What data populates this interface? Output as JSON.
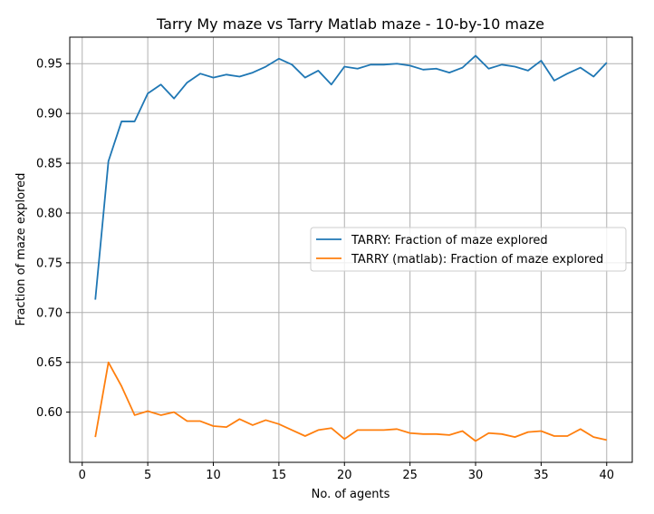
{
  "chart_data": {
    "type": "line",
    "title": "Tarry My maze vs Tarry Matlab maze - 10-by-10 maze",
    "xlabel": "No. of agents",
    "ylabel": "Fraction of maze explored",
    "xlim": [
      -0.95,
      41.95
    ],
    "ylim": [
      0.5496,
      0.9766
    ],
    "xticks": [
      0,
      5,
      10,
      15,
      20,
      25,
      30,
      35,
      40
    ],
    "yticks": [
      0.6,
      0.65,
      0.7,
      0.75,
      0.8,
      0.85,
      0.9,
      0.95
    ],
    "xtick_labels": [
      "0",
      "5",
      "10",
      "15",
      "20",
      "25",
      "30",
      "35",
      "40"
    ],
    "ytick_labels": [
      "0.60",
      "0.65",
      "0.70",
      "0.75",
      "0.80",
      "0.85",
      "0.90",
      "0.95"
    ],
    "grid": true,
    "legend_position": "center-right",
    "x": [
      1,
      2,
      3,
      4,
      5,
      6,
      7,
      8,
      9,
      10,
      11,
      12,
      13,
      14,
      15,
      16,
      17,
      18,
      19,
      20,
      21,
      22,
      23,
      24,
      25,
      26,
      27,
      28,
      29,
      30,
      31,
      32,
      33,
      34,
      35,
      36,
      37,
      38,
      39,
      40
    ],
    "series": [
      {
        "name": "TARRY: Fraction of maze explored",
        "color": "#1f77b4",
        "values": [
          0.713,
          0.852,
          0.892,
          0.892,
          0.92,
          0.929,
          0.915,
          0.931,
          0.94,
          0.936,
          0.939,
          0.937,
          0.941,
          0.947,
          0.955,
          0.949,
          0.936,
          0.943,
          0.929,
          0.947,
          0.945,
          0.949,
          0.949,
          0.95,
          0.948,
          0.944,
          0.945,
          0.941,
          0.946,
          0.958,
          0.945,
          0.949,
          0.947,
          0.943,
          0.953,
          0.933,
          0.94,
          0.946,
          0.937,
          0.951
        ]
      },
      {
        "name": "TARRY (matlab): Fraction of maze explored",
        "color": "#ff7f0e",
        "values": [
          0.575,
          0.65,
          0.626,
          0.597,
          0.601,
          0.597,
          0.6,
          0.591,
          0.591,
          0.586,
          0.585,
          0.593,
          0.587,
          0.592,
          0.588,
          0.582,
          0.576,
          0.582,
          0.584,
          0.573,
          0.582,
          0.582,
          0.582,
          0.583,
          0.579,
          0.578,
          0.578,
          0.577,
          0.581,
          0.571,
          0.579,
          0.578,
          0.575,
          0.58,
          0.581,
          0.576,
          0.576,
          0.583,
          0.575,
          0.572
        ]
      }
    ]
  }
}
